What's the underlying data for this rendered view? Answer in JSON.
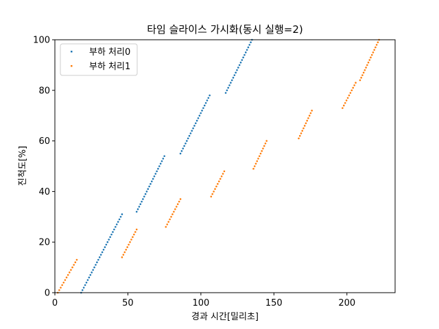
{
  "chart_data": {
    "type": "scatter",
    "title": "타임 슬라이스 가시화(동시 실행=2)",
    "xlabel": "경과 시간[밀리초]",
    "ylabel": "진척도[%]",
    "xlim": [
      0,
      233
    ],
    "ylim": [
      0,
      100
    ],
    "xticks": [
      0,
      50,
      100,
      150,
      200
    ],
    "yticks": [
      0,
      20,
      40,
      60,
      80,
      100
    ],
    "grid": false,
    "legend_position": "top-left",
    "colors": {
      "series0": "#1f77b4",
      "series1": "#ff7f0e"
    },
    "series": [
      {
        "name": "부하 처리0",
        "segments": [
          {
            "x_start": 18,
            "x_end": 46,
            "y_start": 0,
            "y_end": 31
          },
          {
            "x_start": 56,
            "x_end": 75,
            "y_start": 32,
            "y_end": 54
          },
          {
            "x_start": 86,
            "x_end": 106,
            "y_start": 55,
            "y_end": 78
          },
          {
            "x_start": 117,
            "x_end": 135,
            "y_start": 79,
            "y_end": 100
          }
        ]
      },
      {
        "name": "부하 처리1",
        "segments": [
          {
            "x_start": 2,
            "x_end": 15,
            "y_start": 0,
            "y_end": 13
          },
          {
            "x_start": 46,
            "x_end": 56,
            "y_start": 14,
            "y_end": 25
          },
          {
            "x_start": 76,
            "x_end": 86,
            "y_start": 26,
            "y_end": 37
          },
          {
            "x_start": 107,
            "x_end": 116,
            "y_start": 38,
            "y_end": 48
          },
          {
            "x_start": 136,
            "x_end": 145,
            "y_start": 49,
            "y_end": 60
          },
          {
            "x_start": 167,
            "x_end": 176,
            "y_start": 61,
            "y_end": 72
          },
          {
            "x_start": 197,
            "x_end": 206,
            "y_start": 73,
            "y_end": 83
          },
          {
            "x_start": 209,
            "x_end": 222,
            "y_start": 84,
            "y_end": 100
          }
        ]
      }
    ]
  }
}
